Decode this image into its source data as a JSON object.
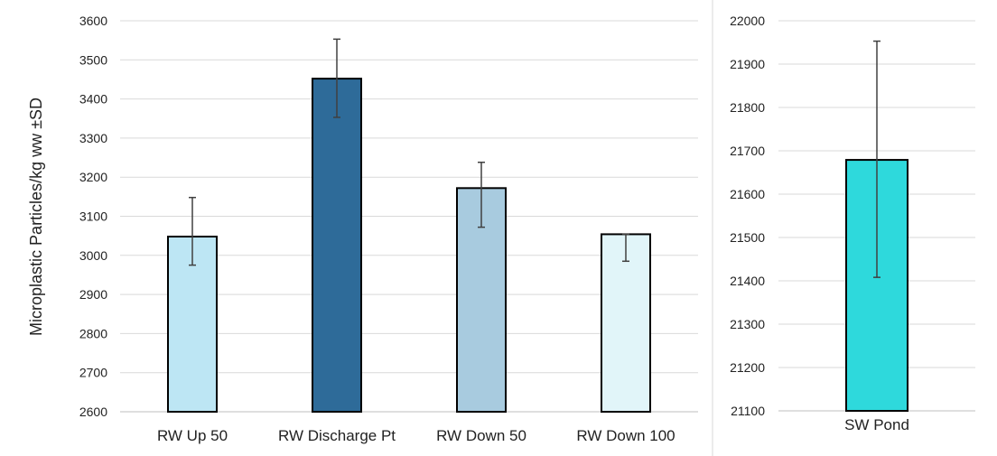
{
  "chart_data": [
    {
      "type": "bar",
      "ylabel": "Microplastic Particles/kg ww ±SD",
      "ylim": [
        2600,
        3600
      ],
      "yticks": [
        2600,
        2700,
        2800,
        2900,
        3000,
        3100,
        3200,
        3300,
        3400,
        3500,
        3600
      ],
      "grid": true,
      "categories": [
        "RW Up 50",
        "RW Discharge Pt",
        "RW Down 50",
        "RW Down 100"
      ],
      "values": [
        3048,
        3452,
        3172,
        3054
      ],
      "error": [
        [
          2975,
          3148
        ],
        [
          3353,
          3553
        ],
        [
          3072,
          3238
        ],
        [
          2985,
          3054
        ]
      ],
      "colors": [
        "#bde6f4",
        "#2e6b99",
        "#a8cbdf",
        "#e1f5f9"
      ]
    },
    {
      "type": "bar",
      "ylim": [
        21100,
        22000
      ],
      "yticks": [
        21100,
        21200,
        21300,
        21400,
        21500,
        21600,
        21700,
        21800,
        21900,
        22000
      ],
      "grid": true,
      "categories": [
        "SW Pond"
      ],
      "values": [
        21679
      ],
      "error": [
        [
          21408,
          21953
        ]
      ],
      "colors": [
        "#2ed9dc"
      ]
    }
  ]
}
